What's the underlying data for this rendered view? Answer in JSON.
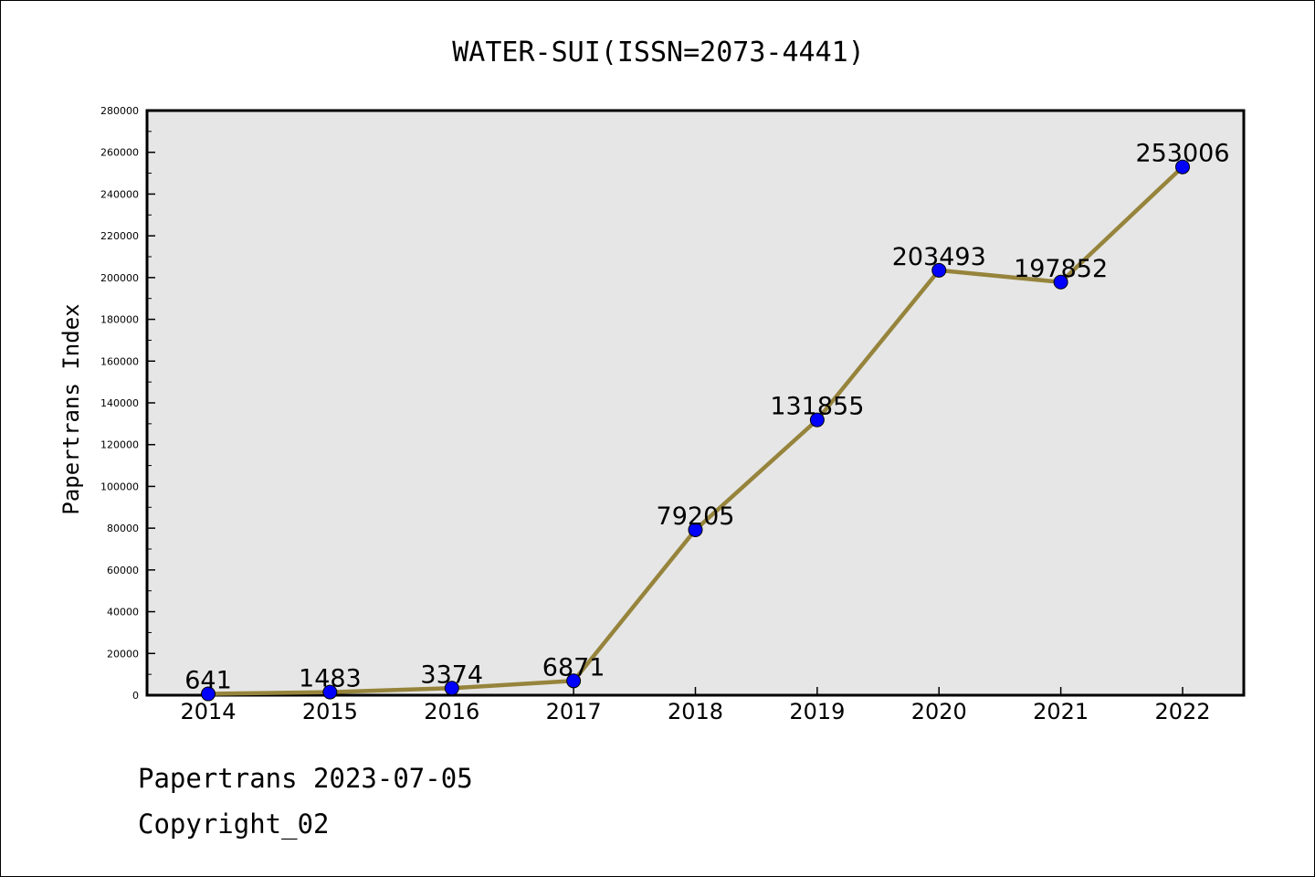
{
  "chart_data": {
    "type": "line",
    "title": "WATER-SUI(ISSN=2073-4441)",
    "xlabel": "",
    "ylabel": "Papertrans Index",
    "categories": [
      "2014",
      "2015",
      "2016",
      "2017",
      "2018",
      "2019",
      "2020",
      "2021",
      "2022"
    ],
    "values": [
      641,
      1483,
      3374,
      6871,
      79205,
      131855,
      203493,
      197852,
      253006
    ],
    "data_labels": [
      "641",
      "1483",
      "3374",
      "6871",
      "79205",
      "131855",
      "203493",
      "197852",
      "253006"
    ],
    "ylim": [
      0,
      280000
    ],
    "yticks": [
      "0",
      "20000",
      "40000",
      "60000",
      "80000",
      "100000",
      "120000",
      "140000",
      "160000",
      "180000",
      "200000",
      "220000",
      "240000",
      "260000",
      "280000"
    ],
    "grid": false,
    "colors": {
      "line": "#96843c",
      "marker": "#0000ff",
      "plot_background": "#e6e6e6"
    }
  },
  "footer": {
    "source": "Papertrans 2023-07-05",
    "copyright": "Copyright_02"
  }
}
